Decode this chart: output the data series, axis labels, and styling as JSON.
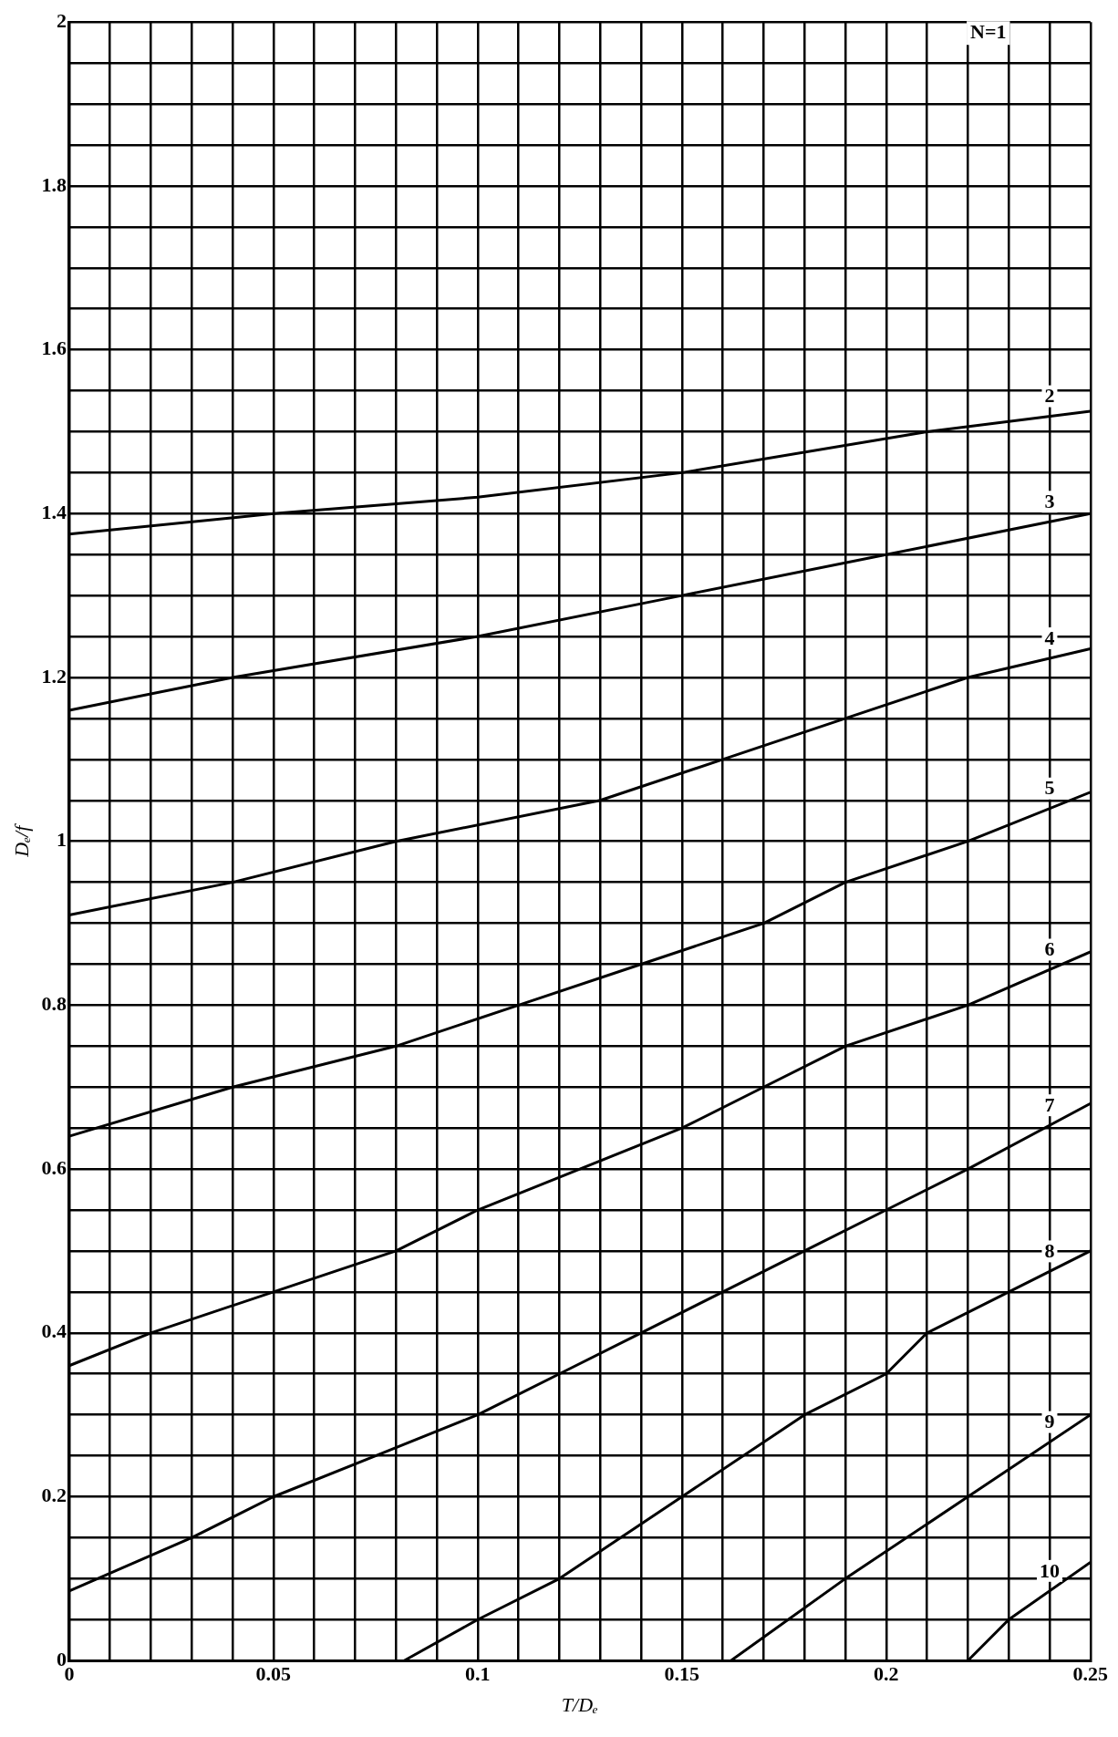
{
  "chart_data": {
    "type": "line",
    "xlabel": "T/Dₑ",
    "ylabel": "Dₑ/f",
    "xlim": [
      0,
      0.25
    ],
    "ylim": [
      0,
      2
    ],
    "xticks": [
      0,
      {
        "value": 0.01,
        "label": null
      },
      {
        "value": 0.02,
        "label": null
      },
      {
        "value": 0.03,
        "label": null
      },
      {
        "value": 0.04,
        "label": null
      },
      0.05,
      {
        "value": 0.06,
        "label": null
      },
      {
        "value": 0.07,
        "label": null
      },
      {
        "value": 0.08,
        "label": null
      },
      {
        "value": 0.09,
        "label": null
      },
      0.1,
      {
        "value": 0.11,
        "label": null
      },
      {
        "value": 0.12,
        "label": null
      },
      {
        "value": 0.13,
        "label": null
      },
      {
        "value": 0.14,
        "label": null
      },
      0.15,
      {
        "value": 0.16,
        "label": null
      },
      {
        "value": 0.17,
        "label": null
      },
      {
        "value": 0.18,
        "label": null
      },
      {
        "value": 0.19,
        "label": null
      },
      0.2,
      {
        "value": 0.21,
        "label": null
      },
      {
        "value": 0.22,
        "label": null
      },
      {
        "value": 0.23,
        "label": null
      },
      {
        "value": 0.24,
        "label": null
      },
      0.25
    ],
    "yticks": [
      0,
      {
        "value": 0.05,
        "label": null
      },
      {
        "value": 0.1,
        "label": null
      },
      {
        "value": 0.15,
        "label": null
      },
      0.2,
      {
        "value": 0.25,
        "label": null
      },
      {
        "value": 0.3,
        "label": null
      },
      {
        "value": 0.35,
        "label": null
      },
      0.4,
      {
        "value": 0.45,
        "label": null
      },
      {
        "value": 0.5,
        "label": null
      },
      {
        "value": 0.55,
        "label": null
      },
      0.6,
      {
        "value": 0.65,
        "label": null
      },
      {
        "value": 0.7,
        "label": null
      },
      {
        "value": 0.75,
        "label": null
      },
      0.8,
      {
        "value": 0.85,
        "label": null
      },
      {
        "value": 0.9,
        "label": null
      },
      {
        "value": 0.95,
        "label": null
      },
      1,
      {
        "value": 1.05,
        "label": null
      },
      {
        "value": 1.1,
        "label": null
      },
      {
        "value": 1.15,
        "label": null
      },
      1.2,
      {
        "value": 1.25,
        "label": null
      },
      {
        "value": 1.3,
        "label": null
      },
      {
        "value": 1.35,
        "label": null
      },
      1.4,
      {
        "value": 1.45,
        "label": null
      },
      {
        "value": 1.5,
        "label": null
      },
      {
        "value": 1.55,
        "label": null
      },
      1.6,
      {
        "value": 1.65,
        "label": null
      },
      {
        "value": 1.7,
        "label": null
      },
      {
        "value": 1.75,
        "label": null
      },
      1.8,
      {
        "value": 1.85,
        "label": null
      },
      {
        "value": 1.9,
        "label": null
      },
      {
        "value": 1.95,
        "label": null
      },
      2
    ],
    "grid": true,
    "legend": false,
    "marker": "none",
    "line_style": "solid",
    "annotations": [
      "N=1"
    ],
    "series": [
      {
        "name": "2",
        "color": "#000000",
        "x": [
          0,
          0.05,
          0.1,
          0.15,
          0.21,
          0.25
        ],
        "values": [
          1.375,
          1.4,
          1.42,
          1.45,
          1.5,
          1.525
        ]
      },
      {
        "name": "3",
        "color": "#000000",
        "x": [
          0,
          0.04,
          0.1,
          0.15,
          0.2,
          0.25
        ],
        "values": [
          1.16,
          1.2,
          1.25,
          1.3,
          1.35,
          1.4
        ]
      },
      {
        "name": "4",
        "color": "#000000",
        "x": [
          0,
          0.04,
          0.08,
          0.13,
          0.16,
          0.19,
          0.22,
          0.25
        ],
        "values": [
          0.91,
          0.95,
          1.0,
          1.05,
          1.1,
          1.15,
          1.2,
          1.235
        ]
      },
      {
        "name": "5",
        "color": "#000000",
        "x": [
          0,
          0.04,
          0.08,
          0.11,
          0.14,
          0.17,
          0.19,
          0.22,
          0.25
        ],
        "values": [
          0.64,
          0.7,
          0.75,
          0.8,
          0.85,
          0.9,
          0.95,
          1.0,
          1.06
        ]
      },
      {
        "name": "6",
        "color": "#000000",
        "x": [
          0,
          0.02,
          0.05,
          0.08,
          0.1,
          0.125,
          0.15,
          0.17,
          0.19,
          0.22,
          0.25
        ],
        "values": [
          0.36,
          0.4,
          0.45,
          0.5,
          0.55,
          0.6,
          0.65,
          0.7,
          0.75,
          0.8,
          0.865
        ]
      },
      {
        "name": "7",
        "color": "#000000",
        "x": [
          0,
          0.03,
          0.05,
          0.075,
          0.1,
          0.12,
          0.14,
          0.16,
          0.18,
          0.2,
          0.22,
          0.25
        ],
        "values": [
          0.085,
          0.15,
          0.2,
          0.25,
          0.3,
          0.35,
          0.4,
          0.45,
          0.5,
          0.55,
          0.6,
          0.68
        ]
      },
      {
        "name": "8",
        "color": "#000000",
        "x": [
          0.082,
          0.1,
          0.12,
          0.15,
          0.18,
          0.2,
          0.21,
          0.25
        ],
        "values": [
          0,
          0.05,
          0.1,
          0.2,
          0.3,
          0.35,
          0.4,
          0.5
        ]
      },
      {
        "name": "9",
        "color": "#000000",
        "x": [
          0.162,
          0.19,
          0.22,
          0.25
        ],
        "values": [
          0,
          0.1,
          0.2,
          0.3
        ]
      },
      {
        "name": "10",
        "color": "#000000",
        "x": [
          0.22,
          0.23,
          0.25
        ],
        "values": [
          0,
          0.05,
          0.12
        ]
      }
    ]
  }
}
